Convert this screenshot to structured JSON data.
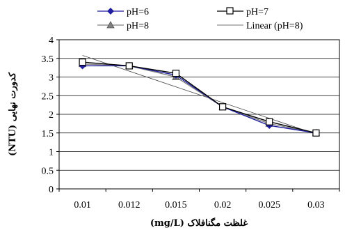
{
  "chart_data": {
    "type": "line",
    "title": "",
    "xlabel": "غلظت مگنافلاک (mg/L)",
    "ylabel": "کدورت نهایی (NTU)",
    "categories": [
      "0.01",
      "0.012",
      "0.015",
      "0.02",
      "0.025",
      "0.03"
    ],
    "ylim": [
      0,
      4
    ],
    "yticks": [
      "0",
      "0.5",
      "1",
      "1.5",
      "2",
      "2.5",
      "3",
      "3.5",
      "4"
    ],
    "grid": "horizontal",
    "legend_position": "top",
    "series": [
      {
        "name": "pH=6",
        "marker": "diamond",
        "color": "#1f1f9f",
        "values": [
          3.3,
          3.3,
          3.05,
          2.2,
          1.7,
          1.5
        ]
      },
      {
        "name": "pH=7",
        "marker": "square-open",
        "color": "#000000",
        "values": [
          3.4,
          3.3,
          3.1,
          2.2,
          1.8,
          1.5
        ]
      },
      {
        "name": "pH=8",
        "marker": "triangle",
        "color": "#808080",
        "values": [
          3.35,
          3.3,
          3.0,
          2.2,
          1.75,
          1.5
        ]
      }
    ],
    "trendline": {
      "name": "Linear (pH=8)",
      "start": 3.58,
      "end": 1.47
    }
  }
}
